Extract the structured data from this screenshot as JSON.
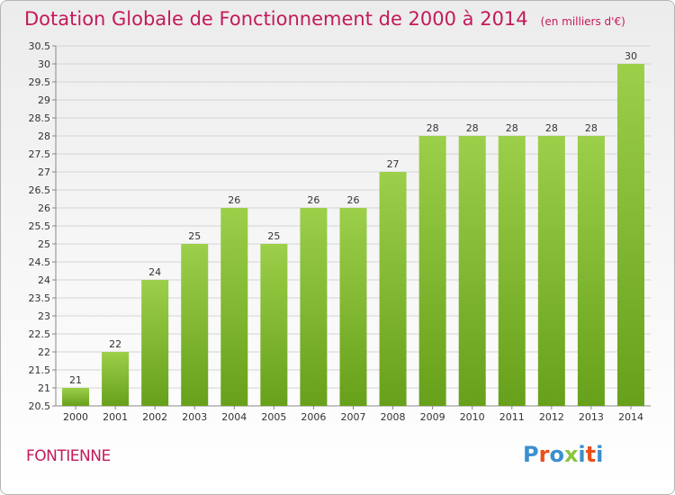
{
  "title": "Dotation Globale de Fonctionnement de 2000 à 2014",
  "subtitle": "(en milliers d'€)",
  "commune": "FONTIENNE",
  "logo": {
    "text": "Proxiti",
    "colors": [
      "#3a8fd0",
      "#e94e1b",
      "#3a8fd0",
      "#8bc53f",
      "#3a8fd0",
      "#e94e1b",
      "#3a8fd0"
    ]
  },
  "colors": {
    "bar_top": "#9ccf4a",
    "bar_bottom": "#67a01a",
    "title": "#c31a5b"
  },
  "chart_data": {
    "type": "bar",
    "categories": [
      "2000",
      "2001",
      "2002",
      "2003",
      "2004",
      "2005",
      "2006",
      "2007",
      "2008",
      "2009",
      "2010",
      "2011",
      "2012",
      "2013",
      "2014"
    ],
    "values": [
      21,
      22,
      24,
      25,
      26,
      25,
      26,
      26,
      27,
      28,
      28,
      28,
      28,
      28,
      30
    ],
    "ylim": [
      20.5,
      30.5
    ],
    "yticks": [
      "20.5",
      "21",
      "21.5",
      "22",
      "22.5",
      "23",
      "23.5",
      "24",
      "24.5",
      "25",
      "25.5",
      "26",
      "26.5",
      "27",
      "27.5",
      "28",
      "28.5",
      "29",
      "29.5",
      "30",
      "30.5"
    ],
    "grid": true,
    "xlabel": "",
    "ylabel": ""
  }
}
